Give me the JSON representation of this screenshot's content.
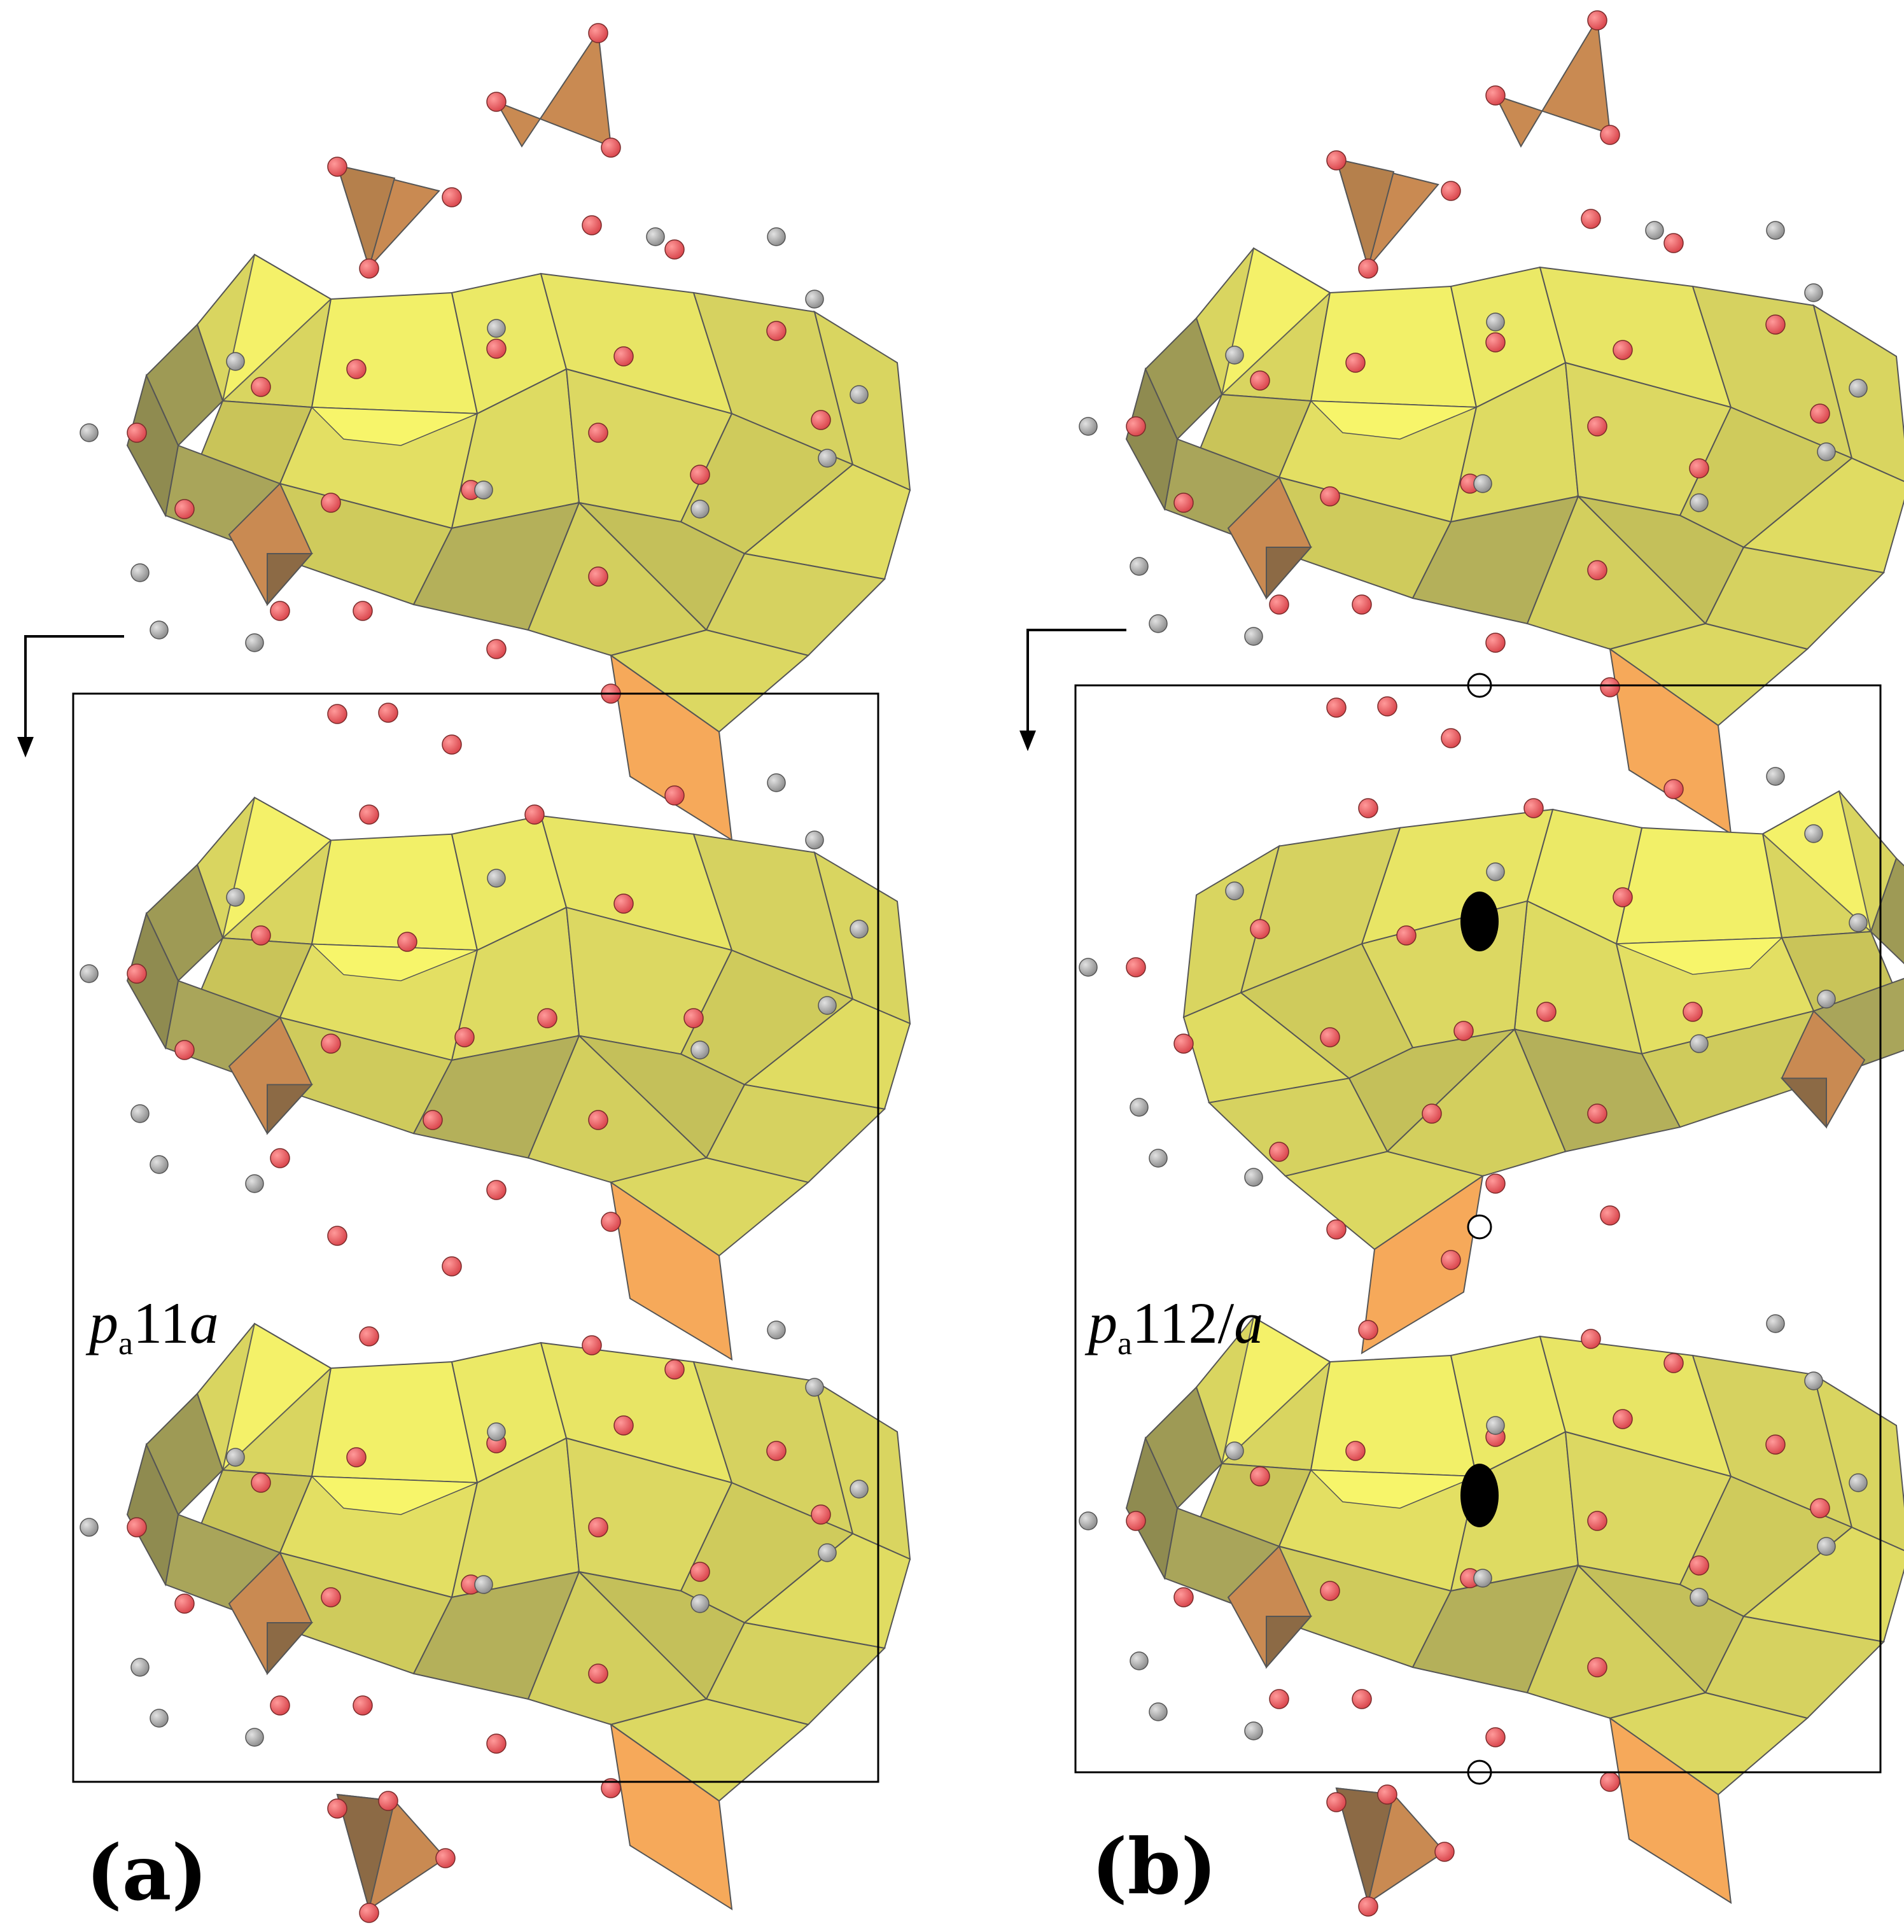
{
  "panels": [
    {
      "id": "a",
      "panel_label": "(a)",
      "group_symbol": {
        "lattice": "p",
        "subscript": "a",
        "rest_upright": "11",
        "rest_italic": "a"
      }
    },
    {
      "id": "b",
      "panel_label": "(b)",
      "group_symbol": {
        "lattice": "p",
        "subscript": "a",
        "rest_upright": "112/",
        "rest_italic": "a"
      }
    }
  ],
  "colors": {
    "polyhedron_light": "#f7f56a",
    "polyhedron_mid": "#d9d560",
    "polyhedron_dark": "#9e9a55",
    "tetra_brown": "#c98a52",
    "tetra_dark": "#8c6a45",
    "tetra_orange": "#f6a95a",
    "oxygen_atom": "#e8595a",
    "hydrogen_atom": "#a9a9a9",
    "cell_outline": "#000000",
    "twofold_axis": "#000000",
    "inversion_center": "#ffffff"
  }
}
